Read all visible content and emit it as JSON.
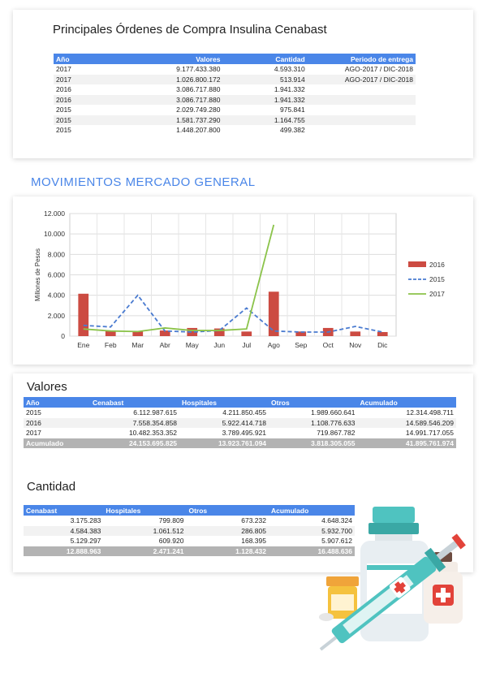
{
  "orders": {
    "title": "Principales Órdenes de Compra Insulina Cenabast",
    "headers": [
      "Año",
      "Valores",
      "Cantidad",
      "Periodo de entrega"
    ],
    "rows": [
      [
        "2017",
        "9.177.433.380",
        "4.593.310",
        "AGO-2017 / DIC-2018"
      ],
      [
        "2017",
        "1.026.800.172",
        "513.914",
        "AGO-2017 / DIC-2018"
      ],
      [
        "2016",
        "3.086.717.880",
        "1.941.332",
        ""
      ],
      [
        "2016",
        "3.086.717.880",
        "1.941.332",
        ""
      ],
      [
        "2015",
        "2.029.749.280",
        "975.841",
        ""
      ],
      [
        "2015",
        "1.581.737.290",
        "1.164.755",
        ""
      ],
      [
        "2015",
        "1.448.207.800",
        "499.382",
        ""
      ]
    ]
  },
  "market": {
    "heading": "MOVIMIENTOS MERCADO GENERAL"
  },
  "chart_data": {
    "type": "bar",
    "title": "",
    "xlabel": "",
    "ylabel": "Millones de Pesos",
    "ylim": [
      0,
      12000
    ],
    "yticks": [
      0,
      2000,
      4000,
      6000,
      8000,
      10000,
      12000
    ],
    "ytick_labels": [
      "0",
      "2.000",
      "4.000",
      "6.000",
      "8.000",
      "10.000",
      "12.000"
    ],
    "categories": [
      "Ene",
      "Feb",
      "Mar",
      "Abr",
      "May",
      "Jun",
      "Jul",
      "Ago",
      "Sep",
      "Oct",
      "Nov",
      "Dic"
    ],
    "grid": true,
    "legend": "right",
    "series": [
      {
        "name": "2016",
        "type": "bar",
        "color": "#cc4b42",
        "values": [
          4150,
          500,
          500,
          550,
          800,
          750,
          450,
          4350,
          450,
          800,
          450,
          400
        ]
      },
      {
        "name": "2015",
        "type": "line",
        "style": "dashed",
        "color": "#4a7bd0",
        "values": [
          1050,
          900,
          4000,
          500,
          400,
          550,
          2750,
          500,
          400,
          400,
          950,
          400
        ]
      },
      {
        "name": "2017",
        "type": "line",
        "style": "solid",
        "color": "#8bc34a",
        "values": [
          700,
          500,
          450,
          800,
          550,
          550,
          700,
          10900,
          null,
          null,
          null,
          null
        ]
      }
    ]
  },
  "valores": {
    "title": "Valores",
    "headers": [
      "Año",
      "Cenabast",
      "Hospitales",
      "Otros",
      "Acumulado"
    ],
    "rows": [
      [
        "2015",
        "6.112.987.615",
        "4.211.850.455",
        "1.989.660.641",
        "12.314.498.711"
      ],
      [
        "2016",
        "7.558.354.858",
        "5.922.414.718",
        "1.108.776.633",
        "14.589.546.209"
      ],
      [
        "2017",
        "10.482.353.352",
        "3.789.495.921",
        "719.867.782",
        "14.991.717.055"
      ]
    ],
    "total": [
      "Acumulado",
      "24.153.695.825",
      "13.923.761.094",
      "3.818.305.055",
      "41.895.761.974"
    ]
  },
  "cantidad": {
    "title": "Cantidad",
    "headers": [
      "Cenabast",
      "Hospitales",
      "Otros",
      "Acumulado"
    ],
    "rows": [
      [
        "3.175.283",
        "799.809",
        "673.232",
        "4.648.324"
      ],
      [
        "4.584.383",
        "1.061.512",
        "286.805",
        "5.932.700"
      ],
      [
        "5.129.297",
        "609.920",
        "168.395",
        "5.907.612"
      ]
    ],
    "total": [
      "12.888.963",
      "2.471.241",
      "1.128.432",
      "16.488.636"
    ]
  },
  "illustration": {
    "icons": [
      "insulin-vial-icon",
      "syringe-icon",
      "pill-bottle-icon",
      "medicine-bottle-icon"
    ]
  }
}
